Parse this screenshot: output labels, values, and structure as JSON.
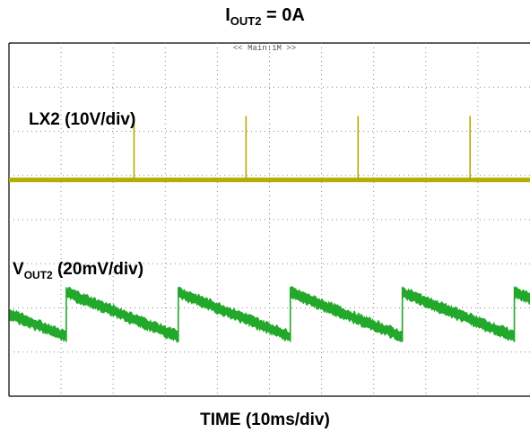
{
  "title": {
    "prefix": "I",
    "sub": "OUT2",
    "suffix": " = 0A"
  },
  "scope_header": "<< Main:1M >>",
  "chart_data": {
    "type": "line",
    "title": "IOUT2 = 0A",
    "xlabel": "TIME (10ms/div)",
    "grid": true,
    "divisions": {
      "x": 10,
      "y": 8
    },
    "series": [
      {
        "name": "LX2 (10V/div)",
        "label_main": "LX2 (10V/div)",
        "color": "#b5ad00",
        "baseline_div": 4.9,
        "pulse_times_div": [
          2.4,
          4.55,
          6.7,
          8.85,
          11.0
        ],
        "pulse_height_div": 1.45
      },
      {
        "name": "VOUT2 (20mV/div)",
        "label_main": "V",
        "label_sub": "OUT2",
        "label_suffix": " (20mV/div)",
        "color": "#22a82a",
        "ramp_start_times_div": [
          1.1,
          3.25,
          5.4,
          7.55,
          9.7
        ],
        "period_div": 2.15,
        "high_div": 2.35,
        "low_div": 1.35
      }
    ]
  }
}
